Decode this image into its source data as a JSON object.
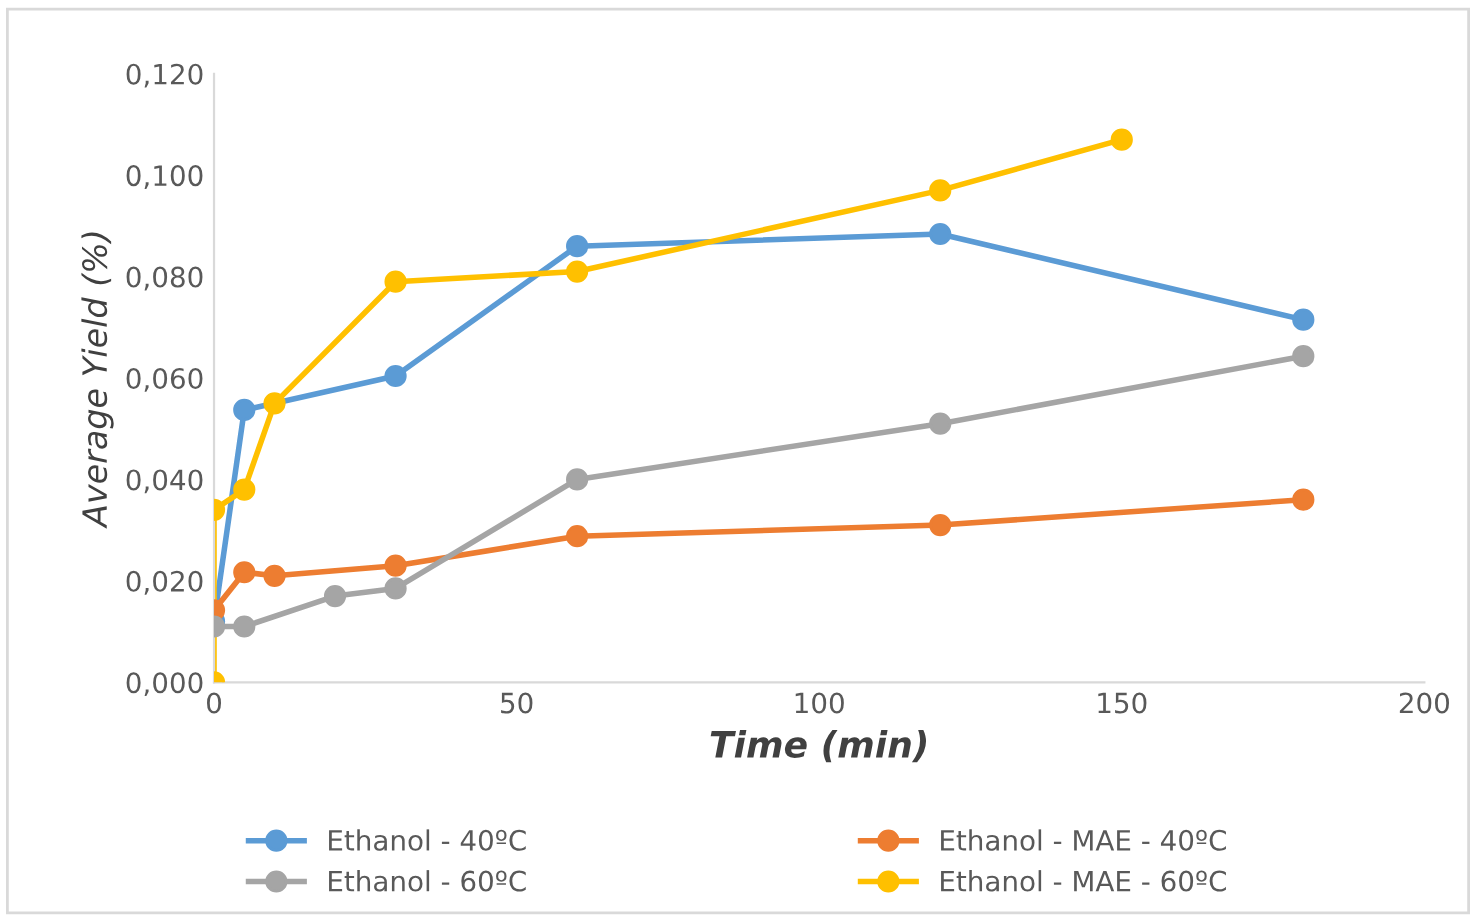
{
  "chart_data": {
    "type": "line",
    "xlabel": "Time (min)",
    "ylabel": "Average Yield (%)",
    "xlim": [
      0,
      200
    ],
    "xticks": [
      0,
      50,
      100,
      150,
      200
    ],
    "ylim": [
      0,
      0.12
    ],
    "yticks": [
      {
        "value": 0,
        "label": "0,000"
      },
      {
        "value": 0.02,
        "label": "0,020"
      },
      {
        "value": 0.04,
        "label": "0,040"
      },
      {
        "value": 0.06,
        "label": "0,060"
      },
      {
        "value": 0.08,
        "label": "0,080"
      },
      {
        "value": 0.1,
        "label": "0,100"
      },
      {
        "value": 0.12,
        "label": "0,120"
      }
    ],
    "grid": false,
    "legend": "bottom",
    "marker": "circle",
    "line_style": "solid",
    "series": [
      {
        "name": "Ethanol - 40ºC",
        "color": "#5b9bd5",
        "x": [
          0,
          5,
          10,
          30,
          60,
          120,
          180
        ],
        "values": [
          0.012,
          0.0537,
          null,
          0.0604,
          0.086,
          0.0884,
          0.0715
        ]
      },
      {
        "name": "Ethanol - MAE - 40ºC",
        "color": "#ed7d31",
        "x": [
          0,
          5,
          10,
          30,
          60,
          120,
          180
        ],
        "values": [
          0.0142,
          0.0217,
          0.021,
          0.023,
          0.0288,
          0.031,
          0.036
        ]
      },
      {
        "name": "Ethanol - 60ºC",
        "color": "#a5a5a5",
        "x": [
          0,
          5,
          20,
          30,
          60,
          120,
          180
        ],
        "values": [
          0.011,
          0.011,
          0.017,
          0.0185,
          0.04,
          0.051,
          0.0643
        ]
      },
      {
        "name": "Ethanol - MAE - 60ºC",
        "color": "#ffc000",
        "x": [
          0,
          0,
          5,
          10,
          30,
          60,
          120,
          150
        ],
        "values": [
          0,
          0.034,
          0.038,
          0.055,
          0.079,
          0.081,
          0.097,
          0.107
        ]
      }
    ]
  }
}
